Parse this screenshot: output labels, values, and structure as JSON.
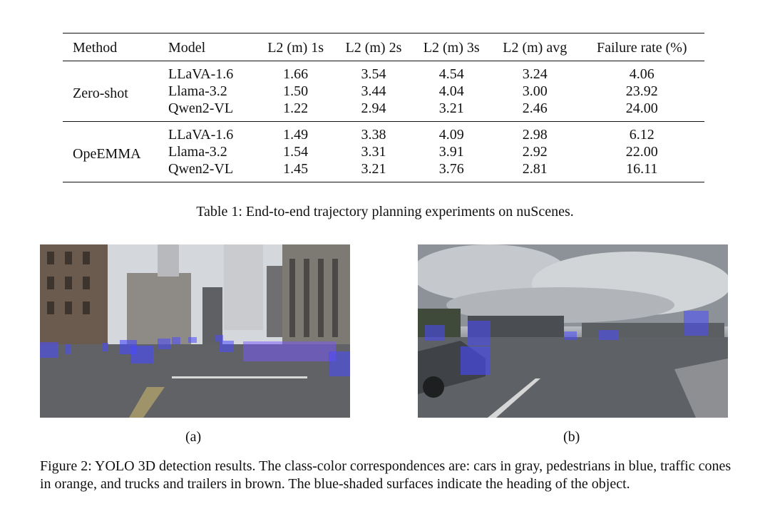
{
  "table": {
    "headers": [
      "Method",
      "Model",
      "L2 (m) 1s",
      "L2 (m) 2s",
      "L2 (m) 3s",
      "L2 (m) avg",
      "Failure rate (%)"
    ],
    "groups": [
      {
        "method": "Zero-shot",
        "rows": [
          {
            "model": "LLaVA-1.6",
            "v1": "1.66",
            "v2": "3.54",
            "v3": "4.54",
            "avg": "3.24",
            "fail": "4.06"
          },
          {
            "model": "Llama-3.2",
            "v1": "1.50",
            "v2": "3.44",
            "v3": "4.04",
            "avg": "3.00",
            "fail": "23.92"
          },
          {
            "model": "Qwen2-VL",
            "v1": "1.22",
            "v2": "2.94",
            "v3": "3.21",
            "avg": "2.46",
            "fail": "24.00"
          }
        ]
      },
      {
        "method": "OpeEMMA",
        "rows": [
          {
            "model": "LLaVA-1.6",
            "v1": "1.49",
            "v2": "3.38",
            "v3": "4.09",
            "avg": "2.98",
            "fail": "6.12"
          },
          {
            "model": "Llama-3.2",
            "v1": "1.54",
            "v2": "3.31",
            "v3": "3.91",
            "avg": "2.92",
            "fail": "22.00"
          },
          {
            "model": "Qwen2-VL",
            "v1": "1.45",
            "v2": "3.21",
            "v3": "3.76",
            "avg": "2.81",
            "fail": "16.11"
          }
        ]
      }
    ],
    "caption": "Table 1: End-to-end trajectory planning experiments on nuScenes."
  },
  "figure": {
    "sub_a": "(a)",
    "sub_b": "(b)",
    "caption": "Figure 2: YOLO 3D detection results. The class-color correspondences are: cars in gray, pedestrians in blue, traffic cones in orange, and trucks and trailers in brown. The blue-shaded surfaces indicate the heading of the object."
  }
}
